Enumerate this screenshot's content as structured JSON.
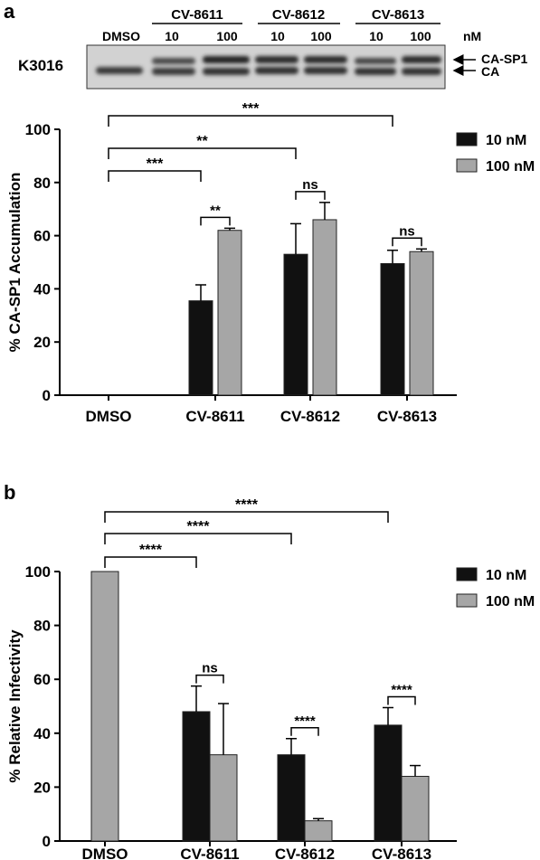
{
  "panel_a": {
    "label": "a",
    "blot": {
      "name": "K3016",
      "lanes": [
        "DMSO",
        "10",
        "100",
        "10",
        "100",
        "10",
        "100"
      ],
      "groups": [
        "CV-8611",
        "CV-8612",
        "CV-8613"
      ],
      "unit": "nM",
      "band_labels": [
        "CA-SP1",
        "CA"
      ]
    }
  },
  "panel_b": {
    "label": "b"
  },
  "chart_data": [
    {
      "type": "bar",
      "categories": [
        "DMSO",
        "CV-8611",
        "CV-8612",
        "CV-8613"
      ],
      "ylabel": "% CA-SP1 Accumulation",
      "ylim": [
        0,
        100
      ],
      "yticks": [
        "0",
        "20",
        "40",
        "60",
        "80",
        "100"
      ],
      "series": [
        {
          "name": "10 nM",
          "color": "#111111",
          "values": [
            0,
            35.5,
            53,
            49.5
          ],
          "errors": [
            0,
            6,
            11.5,
            5
          ]
        },
        {
          "name": "100 nM",
          "color": "#a6a6a6",
          "values": [
            0,
            62,
            66,
            54
          ],
          "errors": [
            0,
            0.8,
            6.5,
            1
          ]
        }
      ],
      "significance": [
        {
          "from": "DMSO",
          "to": "CV-8611:10 nM",
          "label": "***"
        },
        {
          "from": "DMSO",
          "to": "CV-8612:10 nM",
          "label": "**"
        },
        {
          "from": "DMSO",
          "to": "CV-8613:10 nM",
          "label": "***"
        },
        {
          "from": "CV-8611:10 nM",
          "to": "CV-8611:100 nM",
          "label": "**"
        },
        {
          "from": "CV-8612:10 nM",
          "to": "CV-8612:100 nM",
          "label": "ns"
        },
        {
          "from": "CV-8613:10 nM",
          "to": "CV-8613:100 nM",
          "label": "ns"
        }
      ],
      "legend": "top-right"
    },
    {
      "type": "bar",
      "categories": [
        "DMSO",
        "CV-8611",
        "CV-8612",
        "CV-8613"
      ],
      "ylabel": "% Relative Infectivity",
      "ylim": [
        0,
        100
      ],
      "yticks": [
        "0",
        "20",
        "40",
        "60",
        "80",
        "100"
      ],
      "series": [
        {
          "name": "10 nM",
          "color": "#111111",
          "values": [
            null,
            48,
            32,
            43
          ],
          "errors": [
            0,
            9.5,
            6,
            6.5
          ]
        },
        {
          "name": "100 nM",
          "color": "#a6a6a6",
          "values": [
            100,
            32,
            7.5,
            24
          ],
          "errors": [
            0,
            19,
            0.8,
            4
          ]
        }
      ],
      "significance": [
        {
          "from": "DMSO",
          "to": "CV-8611:10 nM",
          "label": "****"
        },
        {
          "from": "DMSO",
          "to": "CV-8612:10 nM",
          "label": "****"
        },
        {
          "from": "DMSO",
          "to": "CV-8613:10 nM",
          "label": "****"
        },
        {
          "from": "CV-8611:10 nM",
          "to": "CV-8611:100 nM",
          "label": "ns"
        },
        {
          "from": "CV-8612:10 nM",
          "to": "CV-8612:100 nM",
          "label": "****"
        },
        {
          "from": "CV-8613:10 nM",
          "to": "CV-8613:100 nM",
          "label": "****"
        }
      ],
      "legend": "top-right"
    }
  ]
}
